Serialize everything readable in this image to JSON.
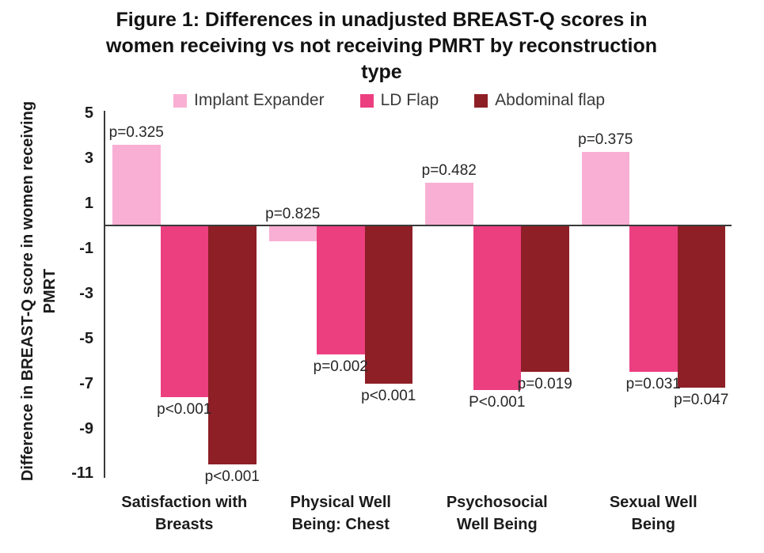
{
  "figure": {
    "title_display": "Figure 1: Differences in unadjusted BREAST-Q scores in\nwomen receiving vs not receiving PMRT by reconstruction\ntype",
    "ylabel_display": "Difference in BREAST-Q score in women receiving\nPMRT",
    "x_tick_display": [
      "Satisfaction with\nBreasts",
      "Physical Well\nBeing: Chest",
      "Psychosocial\nWell Being",
      "Sexual Well\nBeing"
    ]
  },
  "colors": {
    "implant_expander": "#F9AFD4",
    "ld_flap": "#EC3F80",
    "abdominal_flap": "#8E1F26",
    "axis": "#3a3a3a",
    "text": "#1c1c1c"
  },
  "chart_data": {
    "type": "bar",
    "title": "Figure 1: Differences in unadjusted BREAST-Q scores in women receiving vs not receiving PMRT by reconstruction type",
    "xlabel": "",
    "ylabel": "Difference in BREAST-Q score in women receiving PMRT",
    "ylim": [
      -11,
      5
    ],
    "yticks": [
      5,
      3,
      1,
      -1,
      -3,
      -5,
      -7,
      -9,
      -11
    ],
    "grid": false,
    "legend_position": "top",
    "categories": [
      "Satisfaction with Breasts",
      "Physical Well Being: Chest",
      "Psychosocial Well Being",
      "Sexual Well Being"
    ],
    "series": [
      {
        "name": "Implant Expander",
        "color": "#F9AFD4",
        "values": [
          3.6,
          -0.7,
          1.9,
          3.3
        ],
        "p_values": [
          "p=0.325",
          "p=0.825",
          "p=0.482",
          "p=0.375"
        ],
        "p_label_side": "above"
      },
      {
        "name": "LD Flap",
        "color": "#EC3F80",
        "values": [
          -7.6,
          -5.7,
          -7.3,
          -6.5
        ],
        "p_values": [
          "p<0.001",
          "p=0.002",
          "P<0.001",
          "p=0.031"
        ],
        "p_label_side": "below"
      },
      {
        "name": "Abdominal flap",
        "color": "#8E1F26",
        "values": [
          -10.6,
          -7.0,
          -6.5,
          -7.2
        ],
        "p_values": [
          "p<0.001",
          "p<0.001",
          "p=0.019",
          "p=0.047"
        ],
        "p_label_side": "below"
      }
    ]
  }
}
